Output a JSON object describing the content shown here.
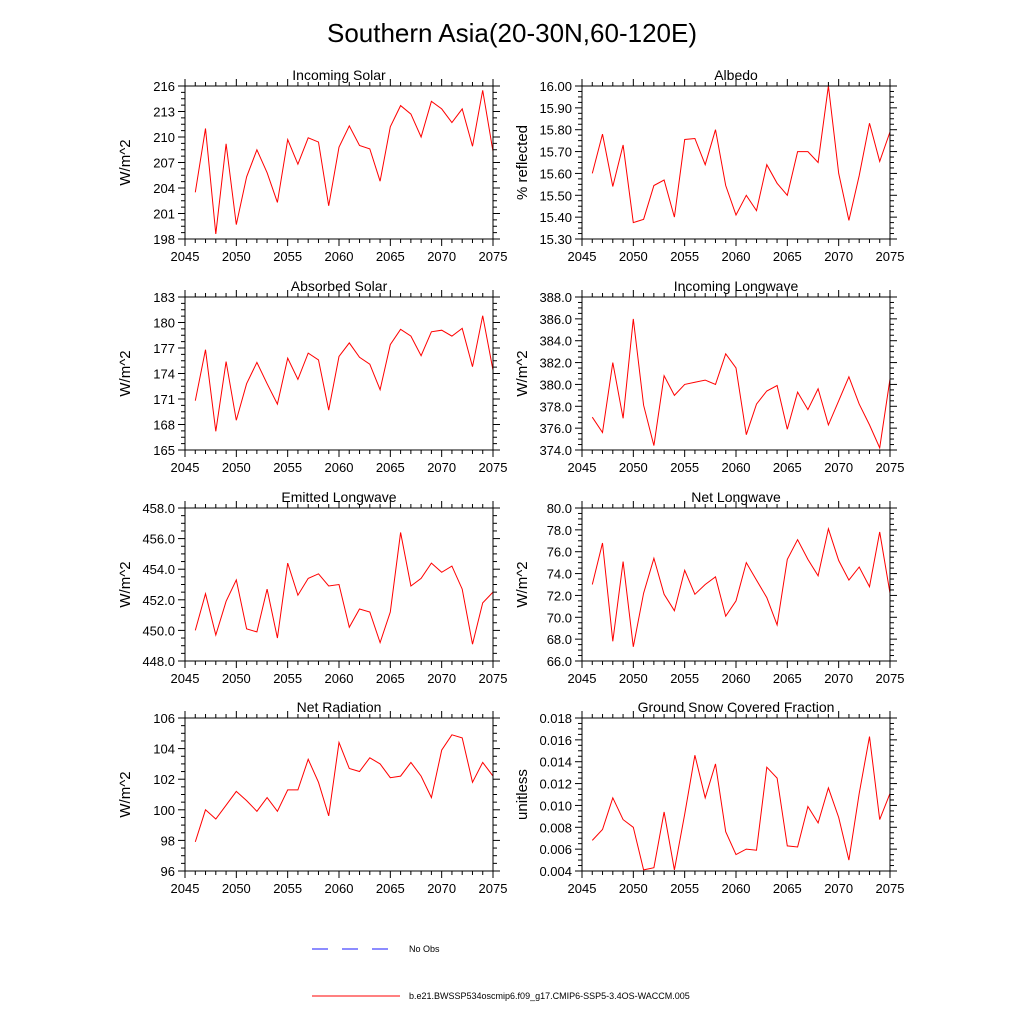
{
  "title": "Southern Asia(20-30N,60-120E)",
  "legend": {
    "entries": [
      {
        "label": "No Obs",
        "color": "#1a1aff",
        "dash": true
      },
      {
        "label": "b.e21.BWSSP534oscmip6.f09_g17.CMIP6-SSP5-3.4OS-WACCM.005",
        "color": "#ff0000",
        "dash": false
      }
    ]
  },
  "chart_data": [
    {
      "type": "line",
      "title": "Incoming Solar",
      "ylabel": "W/m^2",
      "xlim": [
        2045,
        2075
      ],
      "ylim": [
        198,
        216
      ],
      "xticks": [
        2045,
        2050,
        2055,
        2060,
        2065,
        2070,
        2075
      ],
      "yticks": [
        "198",
        "201",
        "204",
        "207",
        "210",
        "213",
        "216"
      ],
      "series": [
        {
          "name": "b.e21.BWSSP534oscmip6.f09_g17.CMIP6-SSP5-3.4OS-WACCM.005",
          "color": "#ff0000",
          "x": [
            2046,
            2047,
            2048,
            2049,
            2050,
            2051,
            2052,
            2053,
            2054,
            2055,
            2056,
            2057,
            2058,
            2059,
            2060,
            2061,
            2062,
            2063,
            2064,
            2065,
            2066,
            2067,
            2068,
            2069,
            2070,
            2071,
            2072,
            2073,
            2074,
            2075
          ],
          "values": [
            203.5,
            211.0,
            198.6,
            209.2,
            199.7,
            205.3,
            208.5,
            205.8,
            202.3,
            209.7,
            206.8,
            209.9,
            209.4,
            201.9,
            208.8,
            211.3,
            209.0,
            208.6,
            204.8,
            211.2,
            213.7,
            212.7,
            210.0,
            214.2,
            213.3,
            211.7,
            213.3,
            208.9,
            215.5,
            208.3
          ]
        }
      ]
    },
    {
      "type": "line",
      "title": "Albedo",
      "ylabel": "% reflected",
      "xlim": [
        2045,
        2075
      ],
      "ylim": [
        15.3,
        16.0
      ],
      "xticks": [
        2045,
        2050,
        2055,
        2060,
        2065,
        2070,
        2075
      ],
      "yticks": [
        "15.30",
        "15.40",
        "15.50",
        "15.60",
        "15.70",
        "15.80",
        "15.90",
        "16.00"
      ],
      "series": [
        {
          "name": "b.e21.BWSSP534oscmip6.f09_g17.CMIP6-SSP5-3.4OS-WACCM.005",
          "color": "#ff0000",
          "x": [
            2046,
            2047,
            2048,
            2049,
            2050,
            2051,
            2052,
            2053,
            2054,
            2055,
            2056,
            2057,
            2058,
            2059,
            2060,
            2061,
            2062,
            2063,
            2064,
            2065,
            2066,
            2067,
            2068,
            2069,
            2070,
            2071,
            2072,
            2073,
            2074,
            2075
          ],
          "values": [
            15.6,
            15.78,
            15.54,
            15.73,
            15.375,
            15.39,
            15.545,
            15.57,
            15.4,
            15.755,
            15.76,
            15.64,
            15.8,
            15.545,
            15.41,
            15.5,
            15.43,
            15.64,
            15.555,
            15.5,
            15.7,
            15.7,
            15.65,
            16.0,
            15.6,
            15.385,
            15.59,
            15.83,
            15.655,
            15.79
          ]
        }
      ]
    },
    {
      "type": "line",
      "title": "Absorbed Solar",
      "ylabel": "W/m^2",
      "xlim": [
        2045,
        2075
      ],
      "ylim": [
        165,
        183
      ],
      "xticks": [
        2045,
        2050,
        2055,
        2060,
        2065,
        2070,
        2075
      ],
      "yticks": [
        "165",
        "168",
        "171",
        "174",
        "177",
        "180",
        "183"
      ],
      "series": [
        {
          "name": "b.e21.BWSSP534oscmip6.f09_g17.CMIP6-SSP5-3.4OS-WACCM.005",
          "color": "#ff0000",
          "x": [
            2046,
            2047,
            2048,
            2049,
            2050,
            2051,
            2052,
            2053,
            2054,
            2055,
            2056,
            2057,
            2058,
            2059,
            2060,
            2061,
            2062,
            2063,
            2064,
            2065,
            2066,
            2067,
            2068,
            2069,
            2070,
            2071,
            2072,
            2073,
            2074,
            2075
          ],
          "values": [
            170.8,
            176.8,
            167.2,
            175.4,
            168.5,
            172.8,
            175.3,
            172.8,
            170.4,
            175.8,
            173.3,
            176.4,
            175.6,
            169.7,
            176.0,
            177.6,
            175.9,
            175.1,
            172.1,
            177.4,
            179.2,
            178.4,
            176.1,
            178.9,
            179.1,
            178.4,
            179.3,
            174.8,
            180.8,
            174.4
          ]
        }
      ]
    },
    {
      "type": "line",
      "title": "Incoming Longwave",
      "ylabel": "W/m^2",
      "xlim": [
        2045,
        2075
      ],
      "ylim": [
        374.0,
        388.0
      ],
      "xticks": [
        2045,
        2050,
        2055,
        2060,
        2065,
        2070,
        2075
      ],
      "yticks": [
        "374.0",
        "376.0",
        "378.0",
        "380.0",
        "382.0",
        "384.0",
        "386.0",
        "388.0"
      ],
      "series": [
        {
          "name": "b.e21.BWSSP534oscmip6.f09_g17.CMIP6-SSP5-3.4OS-WACCM.005",
          "color": "#ff0000",
          "x": [
            2046,
            2047,
            2048,
            2049,
            2050,
            2051,
            2052,
            2053,
            2054,
            2055,
            2056,
            2057,
            2058,
            2059,
            2060,
            2061,
            2062,
            2063,
            2064,
            2065,
            2066,
            2067,
            2068,
            2069,
            2070,
            2071,
            2072,
            2073,
            2074,
            2075
          ],
          "values": [
            377.0,
            375.6,
            382.0,
            376.9,
            386.0,
            378.1,
            374.4,
            380.8,
            379.0,
            380.0,
            380.2,
            380.4,
            380.0,
            382.8,
            381.5,
            375.4,
            378.2,
            379.4,
            379.9,
            375.9,
            379.3,
            377.7,
            379.6,
            376.3,
            378.5,
            380.7,
            378.2,
            376.3,
            374.2,
            380.5
          ]
        }
      ]
    },
    {
      "type": "line",
      "title": "Emitted Longwave",
      "ylabel": "W/m^2",
      "xlim": [
        2045,
        2075
      ],
      "ylim": [
        448.0,
        458.0
      ],
      "xticks": [
        2045,
        2050,
        2055,
        2060,
        2065,
        2070,
        2075
      ],
      "yticks": [
        "448.0",
        "450.0",
        "452.0",
        "454.0",
        "456.0",
        "458.0"
      ],
      "series": [
        {
          "name": "b.e21.BWSSP534oscmip6.f09_g17.CMIP6-SSP5-3.4OS-WACCM.005",
          "color": "#ff0000",
          "x": [
            2046,
            2047,
            2048,
            2049,
            2050,
            2051,
            2052,
            2053,
            2054,
            2055,
            2056,
            2057,
            2058,
            2059,
            2060,
            2061,
            2062,
            2063,
            2064,
            2065,
            2066,
            2067,
            2068,
            2069,
            2070,
            2071,
            2072,
            2073,
            2074,
            2075
          ],
          "values": [
            450.0,
            452.4,
            449.7,
            451.9,
            453.3,
            450.1,
            449.9,
            452.7,
            449.5,
            454.4,
            452.3,
            453.4,
            453.7,
            452.9,
            453.0,
            450.2,
            451.4,
            451.2,
            449.2,
            451.2,
            456.4,
            452.9,
            453.4,
            454.4,
            453.8,
            454.2,
            452.7,
            449.1,
            451.8,
            452.5
          ]
        }
      ]
    },
    {
      "type": "line",
      "title": "Net Longwave",
      "ylabel": "W/m^2",
      "xlim": [
        2045,
        2075
      ],
      "ylim": [
        66.0,
        80.0
      ],
      "xticks": [
        2045,
        2050,
        2055,
        2060,
        2065,
        2070,
        2075
      ],
      "yticks": [
        "66.0",
        "68.0",
        "70.0",
        "72.0",
        "74.0",
        "76.0",
        "78.0",
        "80.0"
      ],
      "series": [
        {
          "name": "b.e21.BWSSP534oscmip6.f09_g17.CMIP6-SSP5-3.4OS-WACCM.005",
          "color": "#ff0000",
          "x": [
            2046,
            2047,
            2048,
            2049,
            2050,
            2051,
            2052,
            2053,
            2054,
            2055,
            2056,
            2057,
            2058,
            2059,
            2060,
            2061,
            2062,
            2063,
            2064,
            2065,
            2066,
            2067,
            2068,
            2069,
            2070,
            2071,
            2072,
            2073,
            2074,
            2075
          ],
          "values": [
            73.0,
            76.8,
            67.8,
            75.1,
            67.3,
            72.2,
            75.4,
            72.1,
            70.6,
            74.3,
            72.1,
            73.0,
            73.7,
            70.1,
            71.5,
            75.0,
            73.4,
            71.8,
            69.3,
            75.3,
            77.1,
            75.3,
            73.8,
            78.1,
            75.2,
            73.4,
            74.6,
            72.8,
            77.8,
            72.2
          ]
        }
      ]
    },
    {
      "type": "line",
      "title": "Net Radiation",
      "ylabel": "W/m^2",
      "xlim": [
        2045,
        2075
      ],
      "ylim": [
        96,
        106
      ],
      "xticks": [
        2045,
        2050,
        2055,
        2060,
        2065,
        2070,
        2075
      ],
      "yticks": [
        "96",
        "98",
        "100",
        "102",
        "104",
        "106"
      ],
      "series": [
        {
          "name": "b.e21.BWSSP534oscmip6.f09_g17.CMIP6-SSP5-3.4OS-WACCM.005",
          "color": "#ff0000",
          "x": [
            2046,
            2047,
            2048,
            2049,
            2050,
            2051,
            2052,
            2053,
            2054,
            2055,
            2056,
            2057,
            2058,
            2059,
            2060,
            2061,
            2062,
            2063,
            2064,
            2065,
            2066,
            2067,
            2068,
            2069,
            2070,
            2071,
            2072,
            2073,
            2074,
            2075
          ],
          "values": [
            97.9,
            100.0,
            99.4,
            100.3,
            101.2,
            100.6,
            99.9,
            100.8,
            99.9,
            101.3,
            101.3,
            103.3,
            101.8,
            99.6,
            104.4,
            102.7,
            102.5,
            103.4,
            103.0,
            102.1,
            102.2,
            103.1,
            102.2,
            100.8,
            103.9,
            104.9,
            104.7,
            101.8,
            103.1,
            102.2
          ]
        }
      ]
    },
    {
      "type": "line",
      "title": "Ground Snow Covered Fraction",
      "ylabel": "unitless",
      "xlim": [
        2045,
        2075
      ],
      "ylim": [
        0.004,
        0.018
      ],
      "xticks": [
        2045,
        2050,
        2055,
        2060,
        2065,
        2070,
        2075
      ],
      "yticks": [
        "0.004",
        "0.006",
        "0.008",
        "0.010",
        "0.012",
        "0.014",
        "0.016",
        "0.018"
      ],
      "series": [
        {
          "name": "b.e21.BWSSP534oscmip6.f09_g17.CMIP6-SSP5-3.4OS-WACCM.005",
          "color": "#ff0000",
          "x": [
            2046,
            2047,
            2048,
            2049,
            2050,
            2051,
            2052,
            2053,
            2054,
            2055,
            2056,
            2057,
            2058,
            2059,
            2060,
            2061,
            2062,
            2063,
            2064,
            2065,
            2066,
            2067,
            2068,
            2069,
            2070,
            2071,
            2072,
            2073,
            2074,
            2075
          ],
          "values": [
            0.0068,
            0.0078,
            0.0107,
            0.0087,
            0.008,
            0.0041,
            0.0043,
            0.0094,
            0.0041,
            0.0092,
            0.0146,
            0.0107,
            0.0138,
            0.0076,
            0.0055,
            0.006,
            0.0059,
            0.0135,
            0.0125,
            0.0063,
            0.0062,
            0.0099,
            0.0084,
            0.0116,
            0.0089,
            0.005,
            0.0111,
            0.0163,
            0.0087,
            0.0111
          ]
        }
      ]
    }
  ]
}
